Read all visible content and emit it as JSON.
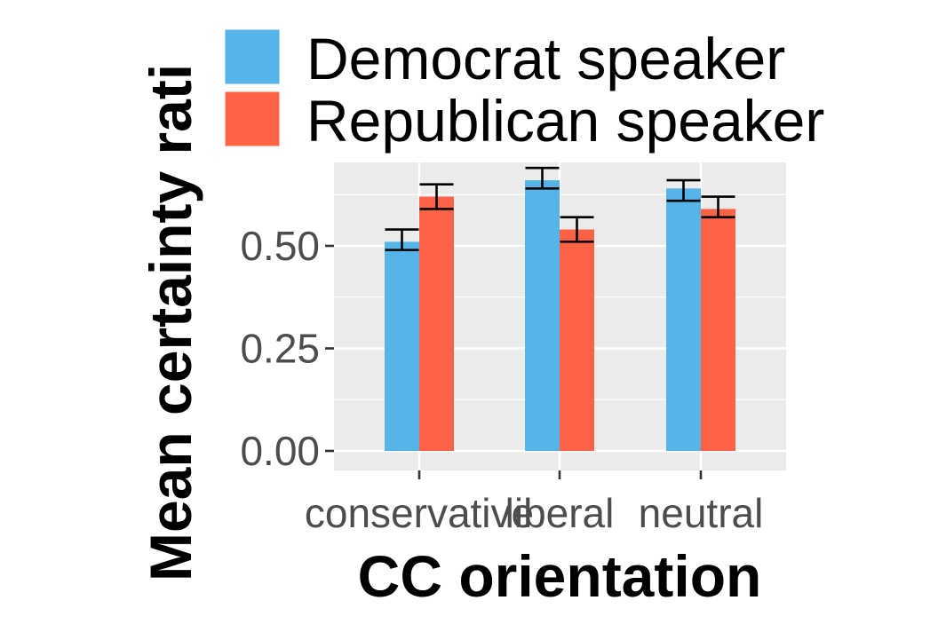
{
  "chart_data": {
    "type": "bar",
    "categories": [
      "conservative",
      "liberal",
      "neutral"
    ],
    "series": [
      {
        "name": "Democrat speaker",
        "color": "#56B4E9",
        "values": [
          0.51,
          0.66,
          0.64
        ],
        "error_low": [
          0.49,
          0.64,
          0.61
        ],
        "error_high": [
          0.54,
          0.69,
          0.66
        ]
      },
      {
        "name": "Republican speaker",
        "color": "#FF6347",
        "values": [
          0.62,
          0.54,
          0.59
        ],
        "error_low": [
          0.59,
          0.51,
          0.57
        ],
        "error_high": [
          0.65,
          0.57,
          0.62
        ]
      }
    ],
    "xlabel": "CC orientation",
    "ylabel": "Mean certainty rati",
    "yticks": [
      "0.00",
      "0.25",
      "0.50"
    ],
    "ytick_values": [
      0,
      0.25,
      0.5
    ],
    "ylim": [
      -0.03,
      0.72
    ],
    "grid": true,
    "panel_background": "#EBEBEB",
    "legend_position": "top"
  }
}
